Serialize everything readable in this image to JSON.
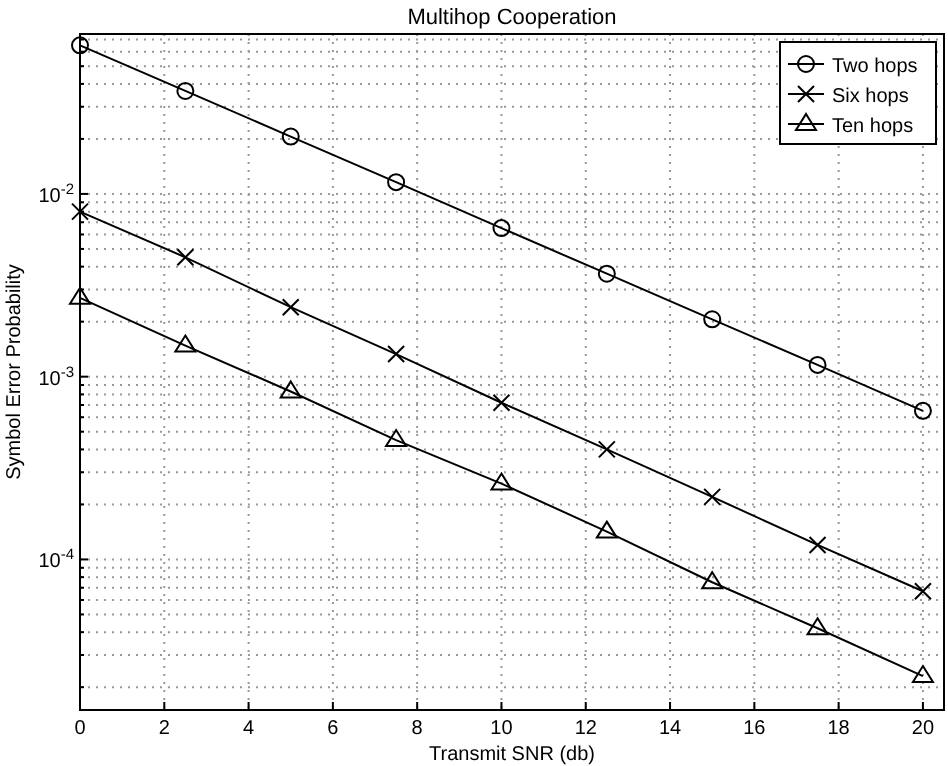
{
  "chart_data": {
    "type": "line",
    "title": "Multihop Cooperation",
    "xlabel": "Transmit SNR (db)",
    "ylabel": "Symbol Error Probability",
    "x": [
      0,
      2.5,
      5,
      7.5,
      10,
      12.5,
      15,
      17.5,
      20
    ],
    "series": [
      {
        "name": "Two hops",
        "color": "#000000",
        "marker": "circle",
        "values": [
          0.065,
          0.0366,
          0.0206,
          0.0116,
          0.0065,
          0.00366,
          0.00206,
          0.00116,
          0.00065
        ]
      },
      {
        "name": "Six hops",
        "color": "#000000",
        "marker": "cross",
        "values": [
          0.008,
          0.0045,
          0.0024,
          0.00133,
          0.00072,
          0.0004,
          0.00022,
          0.00012,
          6.7e-05
        ]
      },
      {
        "name": "Ten hops",
        "color": "#000000",
        "marker": "triangle",
        "values": [
          0.0027,
          0.00148,
          0.00083,
          0.00045,
          0.00026,
          0.000142,
          7.5e-05,
          4.2e-05,
          2.3e-05
        ]
      }
    ],
    "log": "y",
    "xlim": [
      0,
      20.5
    ],
    "ylim": [
      1.5e-05,
      0.075
    ],
    "xticks": [
      0,
      2,
      4,
      6,
      8,
      10,
      12,
      14,
      16,
      18,
      20
    ],
    "yticks": [
      {
        "value": 2e-05,
        "label": null
      },
      {
        "value": 3e-05,
        "label": null
      },
      {
        "value": 4e-05,
        "label": null
      },
      {
        "value": 5e-05,
        "label": null
      },
      {
        "value": 6e-05,
        "label": null
      },
      {
        "value": 7e-05,
        "label": null
      },
      {
        "value": 8e-05,
        "label": null
      },
      {
        "value": 9e-05,
        "label": null
      },
      {
        "value": 0.0001,
        "label": "10$^{-4}$"
      },
      {
        "value": 0.0002,
        "label": null
      },
      {
        "value": 0.0003,
        "label": null
      },
      {
        "value": 0.0004,
        "label": null
      },
      {
        "value": 0.0005,
        "label": null
      },
      {
        "value": 0.0006,
        "label": null
      },
      {
        "value": 0.0007,
        "label": null
      },
      {
        "value": 0.0008,
        "label": null
      },
      {
        "value": 0.0009,
        "label": null
      },
      {
        "value": 0.001,
        "label": "10$^{-3}$"
      },
      {
        "value": 0.002,
        "label": null
      },
      {
        "value": 0.003,
        "label": null
      },
      {
        "value": 0.004,
        "label": null
      },
      {
        "value": 0.005,
        "label": null
      },
      {
        "value": 0.006,
        "label": null
      },
      {
        "value": 0.007,
        "label": null
      },
      {
        "value": 0.008,
        "label": null
      },
      {
        "value": 0.009,
        "label": null
      },
      {
        "value": 0.01,
        "label": "10$^{-2}$"
      },
      {
        "value": 0.02,
        "label": null
      },
      {
        "value": 0.03,
        "label": null
      },
      {
        "value": 0.04,
        "label": null
      },
      {
        "value": 0.05,
        "label": null
      },
      {
        "value": 0.06,
        "label": null
      },
      {
        "value": 0.07,
        "label": null
      }
    ],
    "grid": true,
    "legend": "top right",
    "line_style": "solid"
  }
}
